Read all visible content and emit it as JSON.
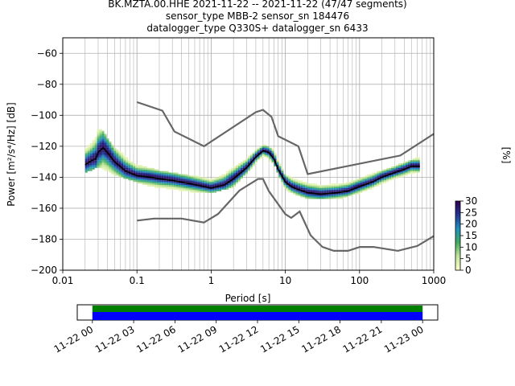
{
  "title": {
    "line1": "BK.MZTA.00.HHE   2021-11-22 -- 2021-11-22  (47/47 segments)",
    "line2": "sensor_type MBB-2 sensor_sn 184476",
    "line3": "datalogger_type Q330S+ datalogger_sn 6433"
  },
  "colorbar": {
    "label": "[%]",
    "ticks": [
      "0",
      "5",
      "10",
      "15",
      "20",
      "25",
      "30"
    ],
    "range": [
      0,
      30
    ],
    "colormap": [
      "#ffffcc",
      "#c2e699",
      "#41ab5d",
      "#1d91c0",
      "#253494",
      "#2d004b"
    ]
  },
  "chart_data": {
    "type": "line",
    "xlabel": "Period [s]",
    "ylabel": "Power [m²/s⁴/Hz] [dB]",
    "xscale": "log",
    "xlim": [
      0.01,
      1000
    ],
    "ylim": [
      -200,
      -50
    ],
    "x_ticks": [
      "0.01",
      "0.1",
      "1",
      "10",
      "100",
      "1000"
    ],
    "y_ticks": [
      "−200",
      "−180",
      "−160",
      "−140",
      "−120",
      "−100",
      "−80",
      "−60"
    ],
    "grid": true,
    "series": [
      {
        "role": "mean-psd",
        "color": "#000000",
        "points": [
          [
            0.02,
            -132
          ],
          [
            0.025,
            -129
          ],
          [
            0.028,
            -128
          ],
          [
            0.03,
            -124
          ],
          [
            0.035,
            -121
          ],
          [
            0.04,
            -124
          ],
          [
            0.05,
            -130
          ],
          [
            0.07,
            -136
          ],
          [
            0.1,
            -139
          ],
          [
            0.15,
            -140
          ],
          [
            0.2,
            -141
          ],
          [
            0.3,
            -142
          ],
          [
            0.5,
            -144
          ],
          [
            0.8,
            -146
          ],
          [
            1,
            -147
          ],
          [
            1.5,
            -145
          ],
          [
            2,
            -141
          ],
          [
            3,
            -134
          ],
          [
            4,
            -127
          ],
          [
            5,
            -123
          ],
          [
            6,
            -124
          ],
          [
            7,
            -128
          ],
          [
            8,
            -135
          ],
          [
            10,
            -143
          ],
          [
            12,
            -146
          ],
          [
            15,
            -148
          ],
          [
            20,
            -150
          ],
          [
            30,
            -151
          ],
          [
            50,
            -150
          ],
          [
            70,
            -149
          ],
          [
            100,
            -146
          ],
          [
            150,
            -143
          ],
          [
            200,
            -140
          ],
          [
            300,
            -137
          ],
          [
            400,
            -135
          ],
          [
            500,
            -133
          ],
          [
            650,
            -133
          ]
        ]
      },
      {
        "role": "high-noise-model",
        "color": "#666666",
        "points": [
          [
            0.1,
            -91.5
          ],
          [
            0.22,
            -97
          ],
          [
            0.32,
            -110.5
          ],
          [
            0.8,
            -120
          ],
          [
            4,
            -98
          ],
          [
            5,
            -96.5
          ],
          [
            6.5,
            -101
          ],
          [
            8,
            -113.5
          ],
          [
            15,
            -120
          ],
          [
            20,
            -138
          ],
          [
            354,
            -126
          ],
          [
            1000,
            -112
          ]
        ]
      },
      {
        "role": "low-noise-model",
        "color": "#666666",
        "points": [
          [
            0.1,
            -168
          ],
          [
            0.17,
            -166.7
          ],
          [
            0.4,
            -166.7
          ],
          [
            0.8,
            -169.2
          ],
          [
            1.24,
            -163.7
          ],
          [
            2.4,
            -148.6
          ],
          [
            4.3,
            -141.1
          ],
          [
            5,
            -141.1
          ],
          [
            6,
            -149
          ],
          [
            10,
            -163.8
          ],
          [
            12,
            -166.2
          ],
          [
            15.6,
            -162.1
          ],
          [
            21.9,
            -177.5
          ],
          [
            31.6,
            -185
          ],
          [
            45,
            -187.5
          ],
          [
            70,
            -187.5
          ],
          [
            101,
            -185
          ],
          [
            154,
            -185
          ],
          [
            328,
            -187.5
          ],
          [
            600,
            -184.4
          ],
          [
            1000,
            -178
          ]
        ]
      }
    ],
    "psd_histogram": {
      "role": "probability-density",
      "value_unit": "%",
      "upper_envelope": [
        [
          0.02,
          -122
        ],
        [
          0.025,
          -118
        ],
        [
          0.03,
          -110
        ],
        [
          0.035,
          -112
        ],
        [
          0.05,
          -122
        ],
        [
          0.1,
          -133
        ],
        [
          0.2,
          -137
        ],
        [
          0.5,
          -140
        ],
        [
          1,
          -142
        ],
        [
          2,
          -135
        ],
        [
          4,
          -124
        ],
        [
          5,
          -120
        ],
        [
          7,
          -123
        ],
        [
          10,
          -140
        ],
        [
          20,
          -145
        ],
        [
          50,
          -146
        ],
        [
          100,
          -142
        ],
        [
          300,
          -134
        ],
        [
          650,
          -128
        ]
      ],
      "lower_envelope": [
        [
          0.02,
          -137
        ],
        [
          0.03,
          -133
        ],
        [
          0.05,
          -138
        ],
        [
          0.1,
          -143
        ],
        [
          0.2,
          -147
        ],
        [
          0.5,
          -149
        ],
        [
          1,
          -150
        ],
        [
          2,
          -146
        ],
        [
          4,
          -131
        ],
        [
          5,
          -126
        ],
        [
          7,
          -131
        ],
        [
          10,
          -148
        ],
        [
          20,
          -154
        ],
        [
          50,
          -154
        ],
        [
          100,
          -150
        ],
        [
          300,
          -141
        ],
        [
          650,
          -136
        ]
      ]
    },
    "time_axis": {
      "ticks": [
        "11-22 00",
        "11-22 03",
        "11-22 06",
        "11-22 09",
        "11-22 12",
        "11-22 15",
        "11-22 18",
        "11-22 21",
        "11-23 00"
      ],
      "range_hours": [
        -1.1,
        25.1
      ],
      "coverage_hours": [
        0,
        24
      ],
      "bars": [
        {
          "role": "data-coverage",
          "color": "#008000"
        },
        {
          "role": "psd-coverage",
          "color": "#0000ff"
        }
      ]
    }
  }
}
